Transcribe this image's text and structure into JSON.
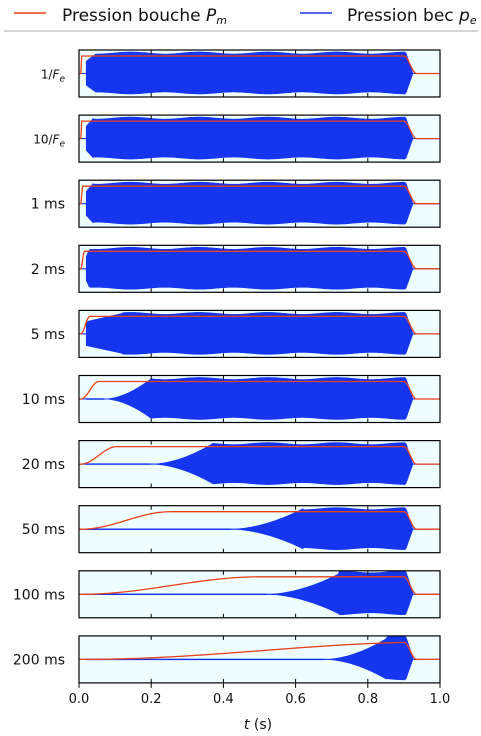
{
  "legend": {
    "placement": "top",
    "items": [
      {
        "prefix": "Pression bouche ",
        "symbol": "P",
        "sub": "m",
        "color": "#e8401a"
      },
      {
        "prefix": "Pression bec ",
        "symbol": "p",
        "sub": "e",
        "color": "#1535ef"
      }
    ]
  },
  "chart_data": {
    "type": "line",
    "xlabel_var": "t",
    "xlabel_unit": " (s)",
    "xlim": [
      0.0,
      1.0
    ],
    "xticks": [
      "0.0",
      "0.2",
      "0.4",
      "0.6",
      "0.8",
      "1.0"
    ],
    "grid": false,
    "background_color": "#eefeff",
    "series_colors": {
      "mouth_pressure": "#e8401a",
      "reed_pressure": "#1535ef"
    },
    "panels": [
      {
        "label": "1/",
        "label_sym": "F",
        "label_sub": "e",
        "rise_time_s": 0.0,
        "osc_onset": 0.0,
        "osc_full": 0.05
      },
      {
        "label": "10/",
        "label_sym": "F",
        "label_sub": "e",
        "rise_time_s": 0.0,
        "osc_onset": 0.0,
        "osc_full": 0.04
      },
      {
        "label": "1 ms",
        "rise_time_s": 0.001,
        "osc_onset": 0.0,
        "osc_full": 0.04
      },
      {
        "label": "2 ms",
        "rise_time_s": 0.002,
        "osc_onset": 0.0,
        "osc_full": 0.03
      },
      {
        "label": "5 ms",
        "rise_time_s": 0.005,
        "osc_onset": 0.0,
        "osc_full": 0.12
      },
      {
        "label": "10 ms",
        "rise_time_s": 0.01,
        "osc_onset": 0.07,
        "osc_full": 0.2
      },
      {
        "label": "20 ms",
        "rise_time_s": 0.02,
        "osc_onset": 0.2,
        "osc_full": 0.37
      },
      {
        "label": "50 ms",
        "rise_time_s": 0.05,
        "osc_onset": 0.42,
        "osc_full": 0.62
      },
      {
        "label": "100 ms",
        "rise_time_s": 0.1,
        "osc_onset": 0.52,
        "osc_full": 0.72
      },
      {
        "label": "200 ms",
        "rise_time_s": 0.2,
        "osc_onset": 0.68,
        "osc_full": 0.85
      }
    ],
    "notes": "Red: mouth pressure rises to a plateau then drops near t=0.9 s. Blue: reed pressure oscillation grows to saturation and ends near t=0.92 s."
  }
}
